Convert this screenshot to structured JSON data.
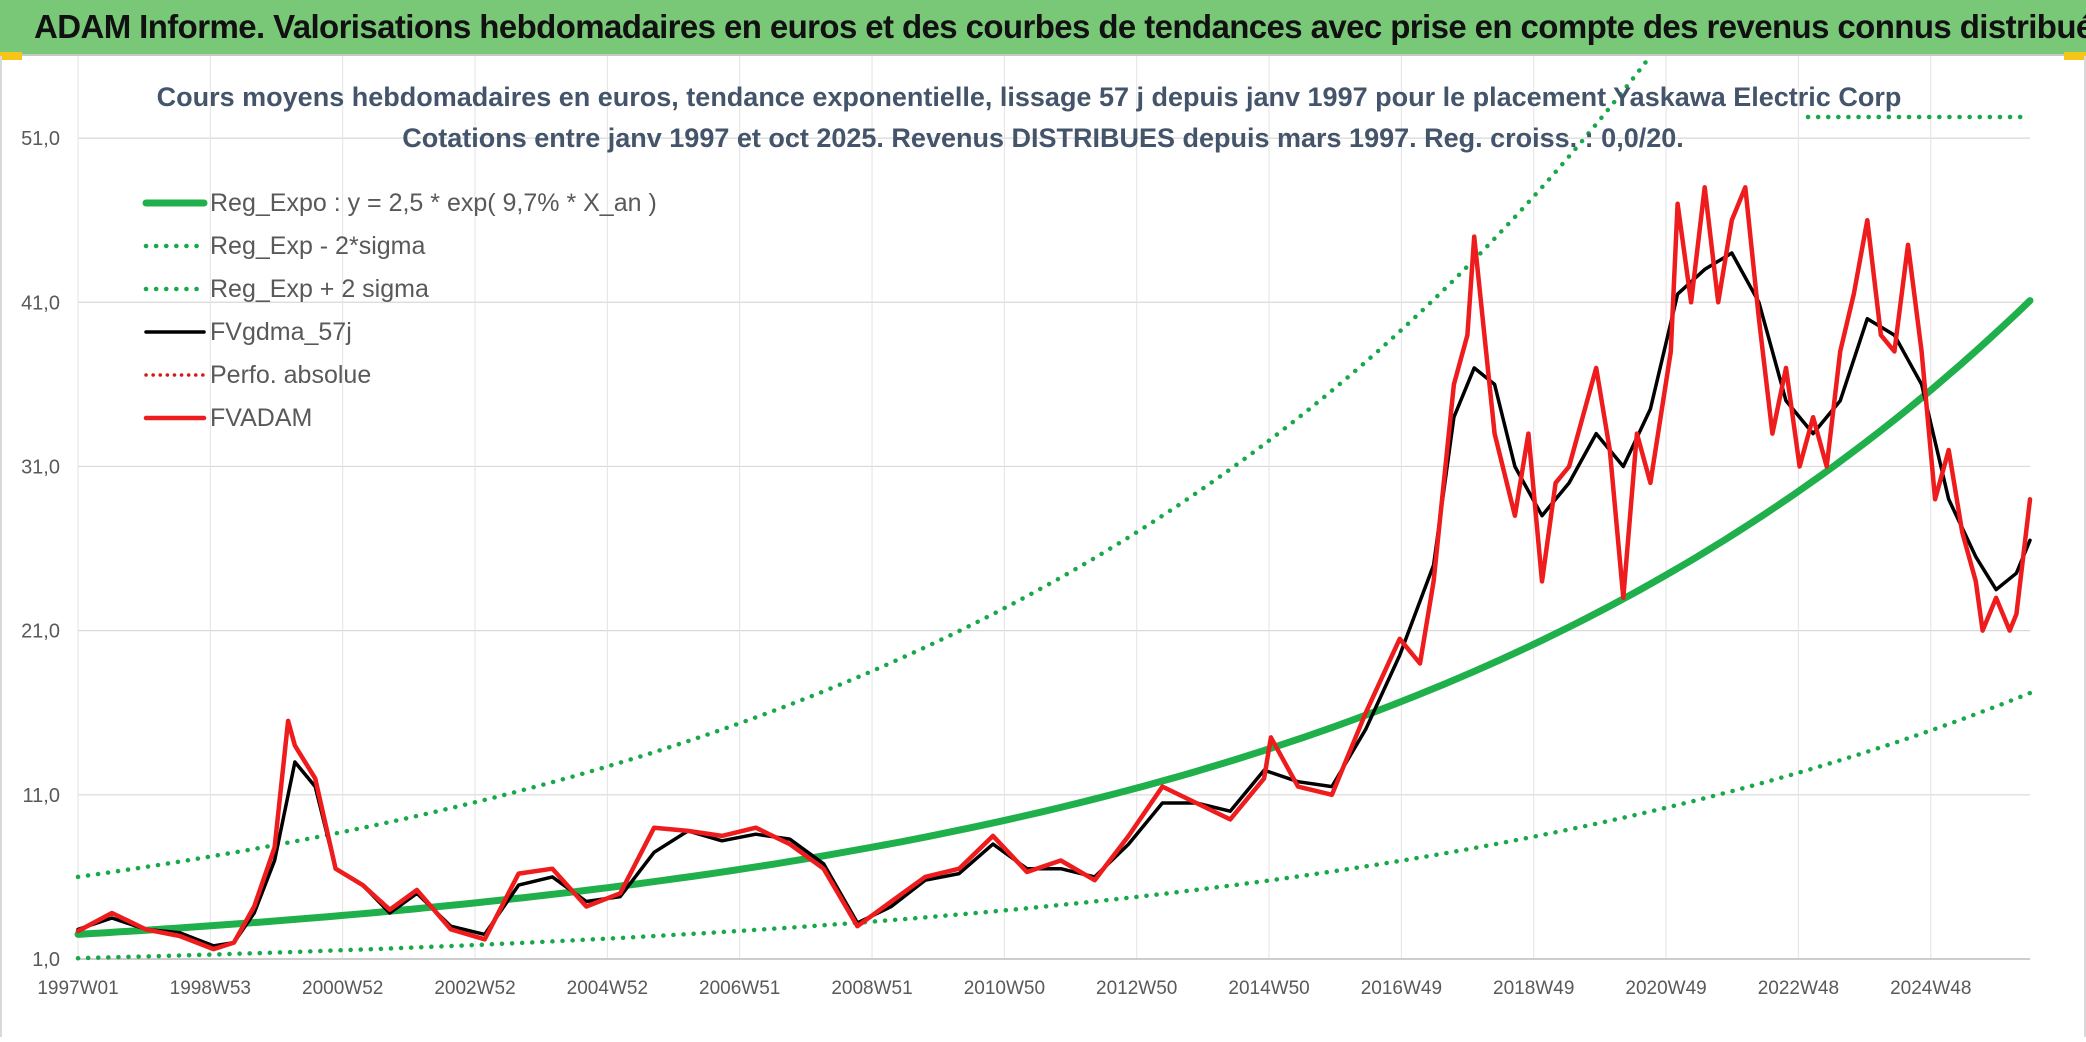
{
  "banner": {
    "title": "ADAM Informe. Valorisations hebdomadaires en euros et des courbes de tendances avec prise en compte des revenus connus distribués"
  },
  "chart_data": {
    "type": "line",
    "title": "Cours moyens hebdomadaires en euros, tendance exponentielle, lissage 57 j depuis janv 1997 pour le placement Yaskawa Electric Corp",
    "subtitle": "Cotations entre janv 1997 et oct 2025. Revenus DISTRIBUES depuis mars 1997. Reg. croiss. : 0,0/20.",
    "xlabel": "",
    "ylabel": "",
    "x_range": [
      1997.0,
      2025.8
    ],
    "ylim": [
      1,
      56
    ],
    "y_ticks": [
      "1,0",
      "11,0",
      "21,0",
      "31,0",
      "41,0",
      "51,0"
    ],
    "x_ticks": [
      "1997W01",
      "1998W53",
      "2000W52",
      "2002W52",
      "2004W52",
      "2006W51",
      "2008W51",
      "2010W50",
      "2012W50",
      "2014W50",
      "2016W49",
      "2018W49",
      "2020W49",
      "2022W48",
      "2024W48"
    ],
    "grid": true,
    "legend_position": "top-left",
    "regression": {
      "a": 2.5,
      "rate": 0.097
    },
    "colors": {
      "green": "#1fb04b",
      "green_dot": "#18a84a",
      "black": "#000000",
      "red": "#ee1c1c",
      "red_dot": "#d81818"
    },
    "series": [
      {
        "name": "Reg_Expo : y = 2,5 * exp( 9,7% *  X_an )",
        "style": "green-solid",
        "x": [
          1997.0,
          2025.8
        ],
        "values": [
          2.5,
          41.1
        ]
      },
      {
        "name": "Reg_Exp - 2*sigma",
        "style": "green-dot",
        "x": [
          1997.0,
          2025.8
        ],
        "values": [
          1.05,
          17.2
        ]
      },
      {
        "name": "Reg_Exp + 2 sigma",
        "style": "green-dot",
        "x": [
          1997.0,
          2020.2
        ],
        "values": [
          6.0,
          56.0
        ]
      },
      {
        "name": "FVgdma_57j",
        "style": "black-solid",
        "x": [
          1997.0,
          1997.5,
          1998.0,
          1998.5,
          1999.0,
          1999.3,
          1999.6,
          1999.9,
          2000.2,
          2000.5,
          2000.8,
          2001.2,
          2001.6,
          2002.0,
          2002.5,
          2003.0,
          2003.5,
          2004.0,
          2004.5,
          2005.0,
          2005.5,
          2006.0,
          2006.5,
          2007.0,
          2007.5,
          2008.0,
          2008.5,
          2009.0,
          2009.5,
          2010.0,
          2010.5,
          2011.0,
          2011.5,
          2012.0,
          2012.5,
          2013.0,
          2013.5,
          2014.0,
          2014.5,
          2015.0,
          2015.5,
          2016.0,
          2016.5,
          2017.0,
          2017.3,
          2017.6,
          2017.9,
          2018.2,
          2018.6,
          2019.0,
          2019.4,
          2019.8,
          2020.2,
          2020.6,
          2021.0,
          2021.4,
          2021.8,
          2022.2,
          2022.6,
          2023.0,
          2023.4,
          2023.8,
          2024.2,
          2024.6,
          2025.0,
          2025.3,
          2025.6,
          2025.8
        ],
        "values": [
          2.8,
          3.5,
          2.8,
          2.6,
          1.8,
          2.0,
          3.8,
          7.0,
          13.0,
          11.5,
          6.5,
          5.5,
          3.8,
          5.0,
          3.0,
          2.5,
          5.5,
          6.0,
          4.5,
          4.8,
          7.5,
          8.8,
          8.2,
          8.6,
          8.3,
          6.8,
          3.2,
          4.2,
          5.8,
          6.2,
          8.0,
          6.5,
          6.5,
          6.0,
          8.0,
          10.5,
          10.5,
          10.0,
          12.5,
          11.8,
          11.5,
          15.0,
          19.5,
          25.0,
          34.0,
          37.0,
          36.0,
          31.0,
          28.0,
          30.0,
          33.0,
          31.0,
          34.5,
          41.5,
          43.0,
          44.0,
          41.0,
          35.0,
          33.0,
          35.0,
          40.0,
          39.0,
          36.0,
          29.0,
          25.5,
          23.5,
          24.5,
          26.5
        ]
      },
      {
        "name": "Perfo. absolue",
        "style": "red-dot",
        "x": [],
        "values": []
      },
      {
        "name": "FVADAM",
        "style": "red-solid",
        "x": [
          1997.0,
          1997.5,
          1998.0,
          1998.5,
          1999.0,
          1999.3,
          1999.6,
          1999.9,
          2000.1,
          2000.2,
          2000.5,
          2000.8,
          2001.2,
          2001.6,
          2002.0,
          2002.5,
          2003.0,
          2003.5,
          2004.0,
          2004.5,
          2005.0,
          2005.5,
          2006.0,
          2006.5,
          2007.0,
          2007.5,
          2008.0,
          2008.5,
          2009.0,
          2009.5,
          2010.0,
          2010.5,
          2011.0,
          2011.5,
          2012.0,
          2012.5,
          2013.0,
          2013.5,
          2014.0,
          2014.5,
          2014.6,
          2015.0,
          2015.5,
          2016.0,
          2016.5,
          2016.8,
          2017.0,
          2017.3,
          2017.5,
          2017.6,
          2017.9,
          2018.2,
          2018.4,
          2018.6,
          2018.8,
          2019.0,
          2019.4,
          2019.6,
          2019.8,
          2020.0,
          2020.2,
          2020.5,
          2020.6,
          2020.8,
          2021.0,
          2021.2,
          2021.4,
          2021.6,
          2021.8,
          2022.0,
          2022.2,
          2022.4,
          2022.6,
          2022.8,
          2023.0,
          2023.2,
          2023.4,
          2023.6,
          2023.8,
          2024.0,
          2024.2,
          2024.4,
          2024.6,
          2024.8,
          2025.0,
          2025.1,
          2025.3,
          2025.5,
          2025.6,
          2025.8
        ],
        "values": [
          2.7,
          3.8,
          2.8,
          2.4,
          1.6,
          2.0,
          4.2,
          7.8,
          15.5,
          14.0,
          12.0,
          6.5,
          5.5,
          4.0,
          5.2,
          2.8,
          2.2,
          6.2,
          6.5,
          4.2,
          5.0,
          9.0,
          8.8,
          8.5,
          9.0,
          8.0,
          6.5,
          3.0,
          4.5,
          6.0,
          6.5,
          8.5,
          6.3,
          7.0,
          5.8,
          8.5,
          11.5,
          10.5,
          9.5,
          12.0,
          14.5,
          11.5,
          11.0,
          16.0,
          20.5,
          19.0,
          24.0,
          36.0,
          39.0,
          45.0,
          33.0,
          28.0,
          33.0,
          24.0,
          30.0,
          31.0,
          37.0,
          32.0,
          23.0,
          33.0,
          30.0,
          38.0,
          47.0,
          41.0,
          48.0,
          41.0,
          46.0,
          48.0,
          40.0,
          33.0,
          37.0,
          31.0,
          34.0,
          31.0,
          38.0,
          41.5,
          46.0,
          39.0,
          38.0,
          44.5,
          38.0,
          29.0,
          32.0,
          27.0,
          24.0,
          21.0,
          23.0,
          21.0,
          22.0,
          29.0
        ]
      }
    ]
  }
}
